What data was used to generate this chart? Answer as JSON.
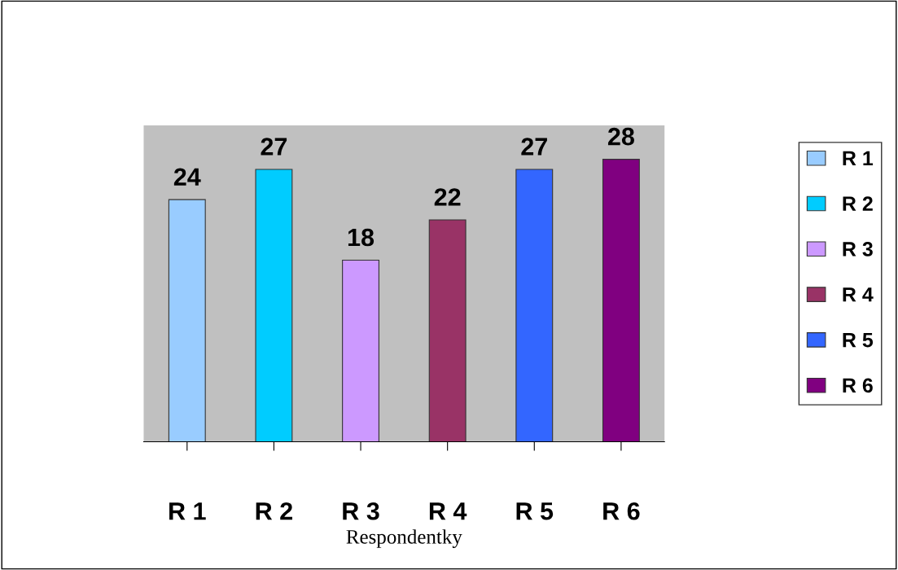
{
  "chart_data": {
    "type": "bar",
    "xlabel": "Respondentky",
    "categories": [
      "R 1",
      "R 2",
      "R 3",
      "R 4",
      "R 5",
      "R 6"
    ],
    "series": [
      {
        "name": "R 1",
        "color": "#99ccff",
        "values": [
          24,
          null,
          null,
          null,
          null,
          null
        ]
      },
      {
        "name": "R 2",
        "color": "#00ccff",
        "values": [
          null,
          27,
          null,
          null,
          null,
          null
        ]
      },
      {
        "name": "R 3",
        "color": "#cc99ff",
        "values": [
          null,
          null,
          18,
          null,
          null,
          null
        ]
      },
      {
        "name": "R 4",
        "color": "#993366",
        "values": [
          null,
          null,
          null,
          22,
          null,
          null
        ]
      },
      {
        "name": "R 5",
        "color": "#3366ff",
        "values": [
          null,
          null,
          null,
          null,
          27,
          null
        ]
      },
      {
        "name": "R 6",
        "color": "#800080",
        "values": [
          null,
          null,
          null,
          null,
          null,
          28
        ]
      }
    ],
    "data_labels": true,
    "legend": "right"
  }
}
